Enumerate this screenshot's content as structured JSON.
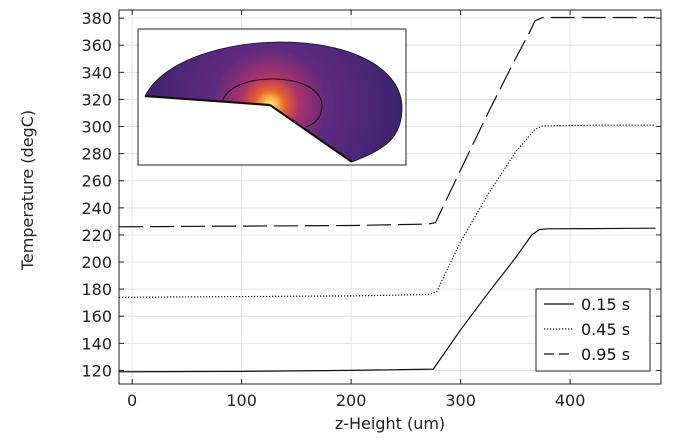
{
  "chart_data": {
    "type": "line",
    "xlabel": "z-Height (um)",
    "ylabel": "Temperature (degC)",
    "xlim": [
      -12,
      483
    ],
    "ylim": [
      110,
      386
    ],
    "xticks": [
      0,
      100,
      200,
      300,
      400
    ],
    "yticks": [
      120,
      140,
      160,
      180,
      200,
      220,
      240,
      260,
      280,
      300,
      320,
      340,
      360,
      380
    ],
    "grid": true,
    "legend_position": "bottom-right",
    "series": [
      {
        "name": "0.15 s",
        "style": "solid",
        "x": [
          -12,
          100,
          200,
          275,
          300,
          325,
          350,
          365,
          372,
          380,
          420,
          478
        ],
        "y": [
          119,
          119.3,
          120,
          121,
          150,
          177,
          203,
          220,
          224,
          224.5,
          224.7,
          225
        ]
      },
      {
        "name": "0.45 s",
        "style": "dotted",
        "x": [
          -12,
          100,
          200,
          270,
          278,
          300,
          325,
          350,
          368,
          375,
          420,
          478
        ],
        "y": [
          174,
          174.5,
          175,
          176,
          178,
          215,
          250,
          281,
          298,
          300.5,
          301,
          301
        ]
      },
      {
        "name": "0.95 s",
        "style": "dashed",
        "x": [
          -12,
          100,
          200,
          270,
          277,
          300,
          325,
          350,
          362,
          368,
          375,
          420,
          478
        ],
        "y": [
          226,
          226.5,
          227,
          228,
          229,
          268,
          310,
          350,
          368,
          378,
          380.5,
          380.5,
          380.5
        ]
      }
    ]
  },
  "colors": {
    "line": "#111111",
    "grid": "#e3e3e3",
    "inset_low": "#3b1c6b",
    "inset_high": "#fcd57a"
  }
}
